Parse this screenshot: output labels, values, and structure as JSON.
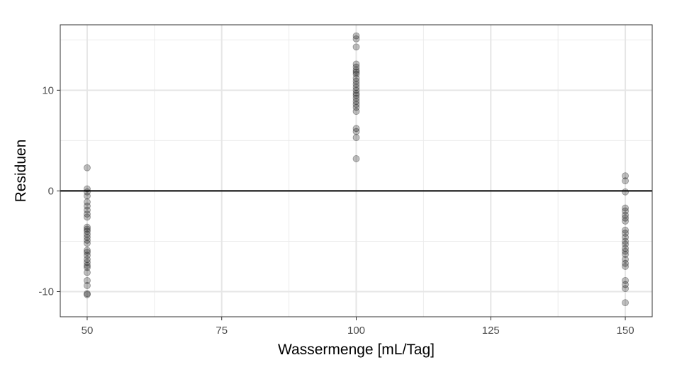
{
  "chart_data": {
    "type": "scatter",
    "xlabel": "Wassermenge [mL/Tag]",
    "ylabel": "Residuen",
    "xlim": [
      45,
      155
    ],
    "ylim": [
      -12.5,
      16.5
    ],
    "x_ticks": [
      50,
      75,
      100,
      125,
      150
    ],
    "y_ticks": [
      -10,
      0,
      10
    ],
    "grid": true,
    "reference_line_y": 0,
    "point_color": "#000000",
    "point_alpha": 0.25,
    "groups": [
      {
        "x": 50,
        "y": [
          2.3,
          0.2,
          -0.1,
          -0.5,
          -1.1,
          -1.5,
          -1.9,
          -2.3,
          -2.6,
          -3.6,
          -3.8,
          -4.0,
          -4.3,
          -4.6,
          -4.9,
          -5.2,
          -5.9,
          -6.1,
          -6.4,
          -6.8,
          -7.1,
          -7.4,
          -7.6,
          -8.1,
          -8.9,
          -9.4,
          -10.2,
          -10.3
        ]
      },
      {
        "x": 100,
        "y": [
          15.4,
          15.1,
          14.3,
          12.6,
          12.3,
          12.0,
          11.8,
          11.6,
          11.2,
          10.9,
          10.6,
          10.3,
          10.0,
          9.7,
          9.5,
          9.2,
          8.9,
          8.6,
          8.3,
          7.9,
          6.2,
          5.9,
          5.3,
          3.2
        ]
      },
      {
        "x": 150,
        "y": [
          1.5,
          1.0,
          -0.1,
          -1.7,
          -2.0,
          -2.4,
          -2.7,
          -3.0,
          -3.9,
          -4.2,
          -4.6,
          -5.0,
          -5.3,
          -5.7,
          -6.0,
          -6.3,
          -6.8,
          -7.2,
          -7.5,
          -8.9,
          -9.3,
          -9.7,
          -11.1
        ]
      }
    ]
  }
}
